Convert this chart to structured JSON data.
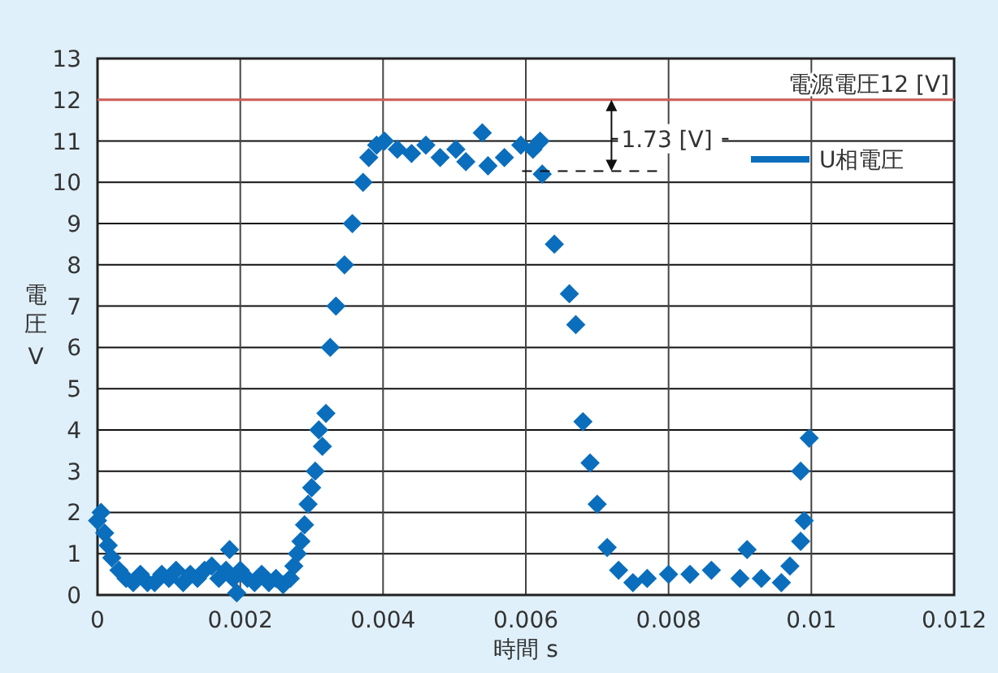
{
  "chart_data": {
    "type": "scatter",
    "xlabel": "時間 s",
    "ylabel": "電圧 V",
    "xlim": [
      0,
      0.012
    ],
    "ylim": [
      0,
      13
    ],
    "xticks": [
      0,
      0.002,
      0.004,
      0.006,
      0.008,
      0.01,
      0.012
    ],
    "yticks": [
      0,
      1,
      2,
      3,
      4,
      5,
      6,
      7,
      8,
      9,
      10,
      11,
      12,
      13
    ],
    "grid": true,
    "legend": "top right",
    "marker": "diamond",
    "series": [
      {
        "name": "U相電圧",
        "color": "#0a6ebd",
        "x": [
          0,
          5e-05,
          0.0001,
          0.00015,
          0.0002,
          0.0003,
          0.0004,
          0.0005,
          0.0006,
          0.0007,
          0.0008,
          0.0009,
          0.001,
          0.0011,
          0.0012,
          0.0013,
          0.0014,
          0.0015,
          0.0016,
          0.0017,
          0.0018,
          0.00185,
          0.0019,
          0.00195,
          0.002,
          0.0021,
          0.0022,
          0.0023,
          0.0024,
          0.0025,
          0.0026,
          0.0027,
          0.00275,
          0.0028,
          0.00285,
          0.0029,
          0.00295,
          0.003,
          0.00305,
          0.0031,
          0.00315,
          0.0032,
          0.00326,
          0.00334,
          0.00346,
          0.00357,
          0.00372,
          0.0038,
          0.00391,
          0.00402,
          0.0042,
          0.0044,
          0.0046,
          0.0048,
          0.00502,
          0.00516,
          0.00539,
          0.00547,
          0.0057,
          0.00593,
          0.0061,
          0.0062,
          0.00623,
          0.0064,
          0.00661,
          0.0067,
          0.0068,
          0.0069,
          0.007,
          0.00714,
          0.0073,
          0.0075,
          0.0077,
          0.008,
          0.0083,
          0.0086,
          0.009,
          0.0091,
          0.0093,
          0.00958,
          0.0097,
          0.00985,
          0.0099,
          0.00985,
          0.00997
        ],
        "values": [
          1.8,
          2.0,
          1.5,
          1.2,
          0.9,
          0.6,
          0.4,
          0.3,
          0.5,
          0.3,
          0.3,
          0.5,
          0.4,
          0.6,
          0.3,
          0.5,
          0.4,
          0.6,
          0.7,
          0.4,
          0.6,
          1.1,
          0.4,
          0.05,
          0.6,
          0.4,
          0.3,
          0.5,
          0.3,
          0.4,
          0.25,
          0.4,
          0.7,
          1.0,
          1.3,
          1.7,
          2.2,
          2.6,
          3.0,
          4.0,
          3.6,
          4.4,
          6.0,
          7.0,
          8.0,
          9.0,
          10.0,
          10.6,
          10.9,
          11.0,
          10.8,
          10.7,
          10.9,
          10.6,
          10.8,
          10.5,
          11.2,
          10.4,
          10.6,
          10.9,
          10.8,
          11.0,
          10.2,
          8.5,
          7.3,
          6.55,
          4.2,
          3.2,
          2.2,
          1.15,
          0.6,
          0.3,
          0.4,
          0.5,
          0.5,
          0.6,
          0.4,
          1.1,
          0.4,
          0.3,
          0.7,
          1.3,
          1.8,
          3.0,
          3.8
        ]
      }
    ],
    "ref_lines": [
      {
        "axis": "y",
        "value": 12,
        "label": "電源電圧12 [V]",
        "color": "#d0605a"
      }
    ],
    "annotations": [
      "1.73 [V]"
    ]
  }
}
